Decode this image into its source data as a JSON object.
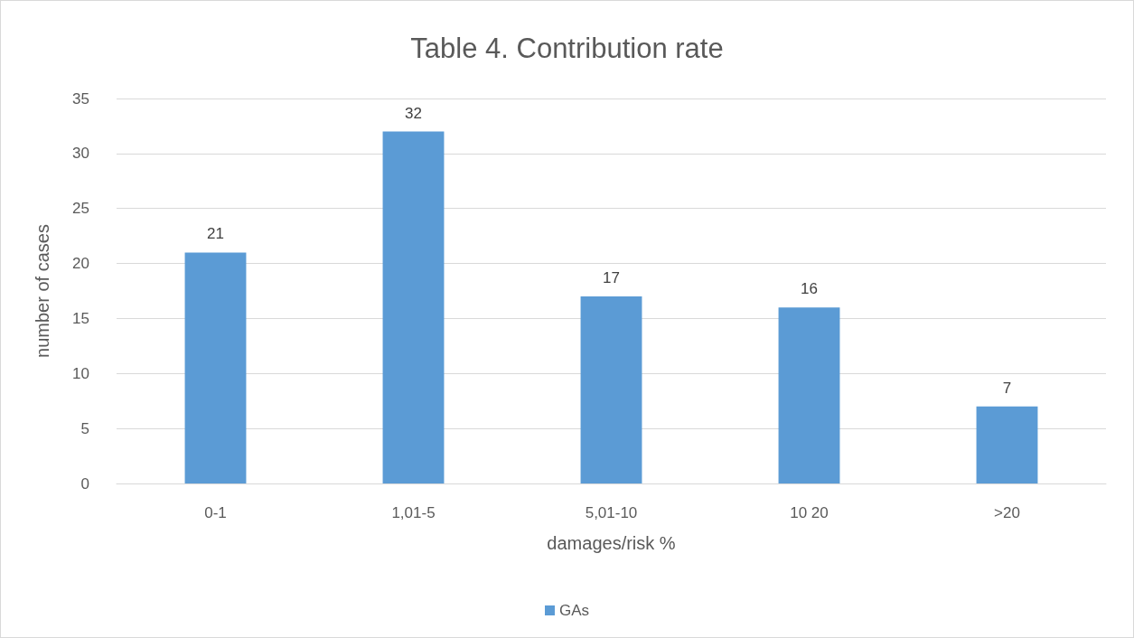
{
  "chart_data": {
    "type": "bar",
    "title": "Table 4. Contribution rate",
    "xlabel": "damages/risk %",
    "ylabel": "number of cases",
    "categories": [
      "0-1",
      "1,01-5",
      "5,01-10",
      "10 20",
      ">20"
    ],
    "series": [
      {
        "name": "GAs",
        "color": "#5b9bd5",
        "values": [
          21,
          32,
          17,
          16,
          7
        ]
      }
    ],
    "ylim": [
      0,
      35
    ],
    "yticks": [
      0,
      5,
      10,
      15,
      20,
      25,
      30,
      35
    ],
    "grid": "y",
    "legend": "bottom",
    "data_labels": true
  }
}
